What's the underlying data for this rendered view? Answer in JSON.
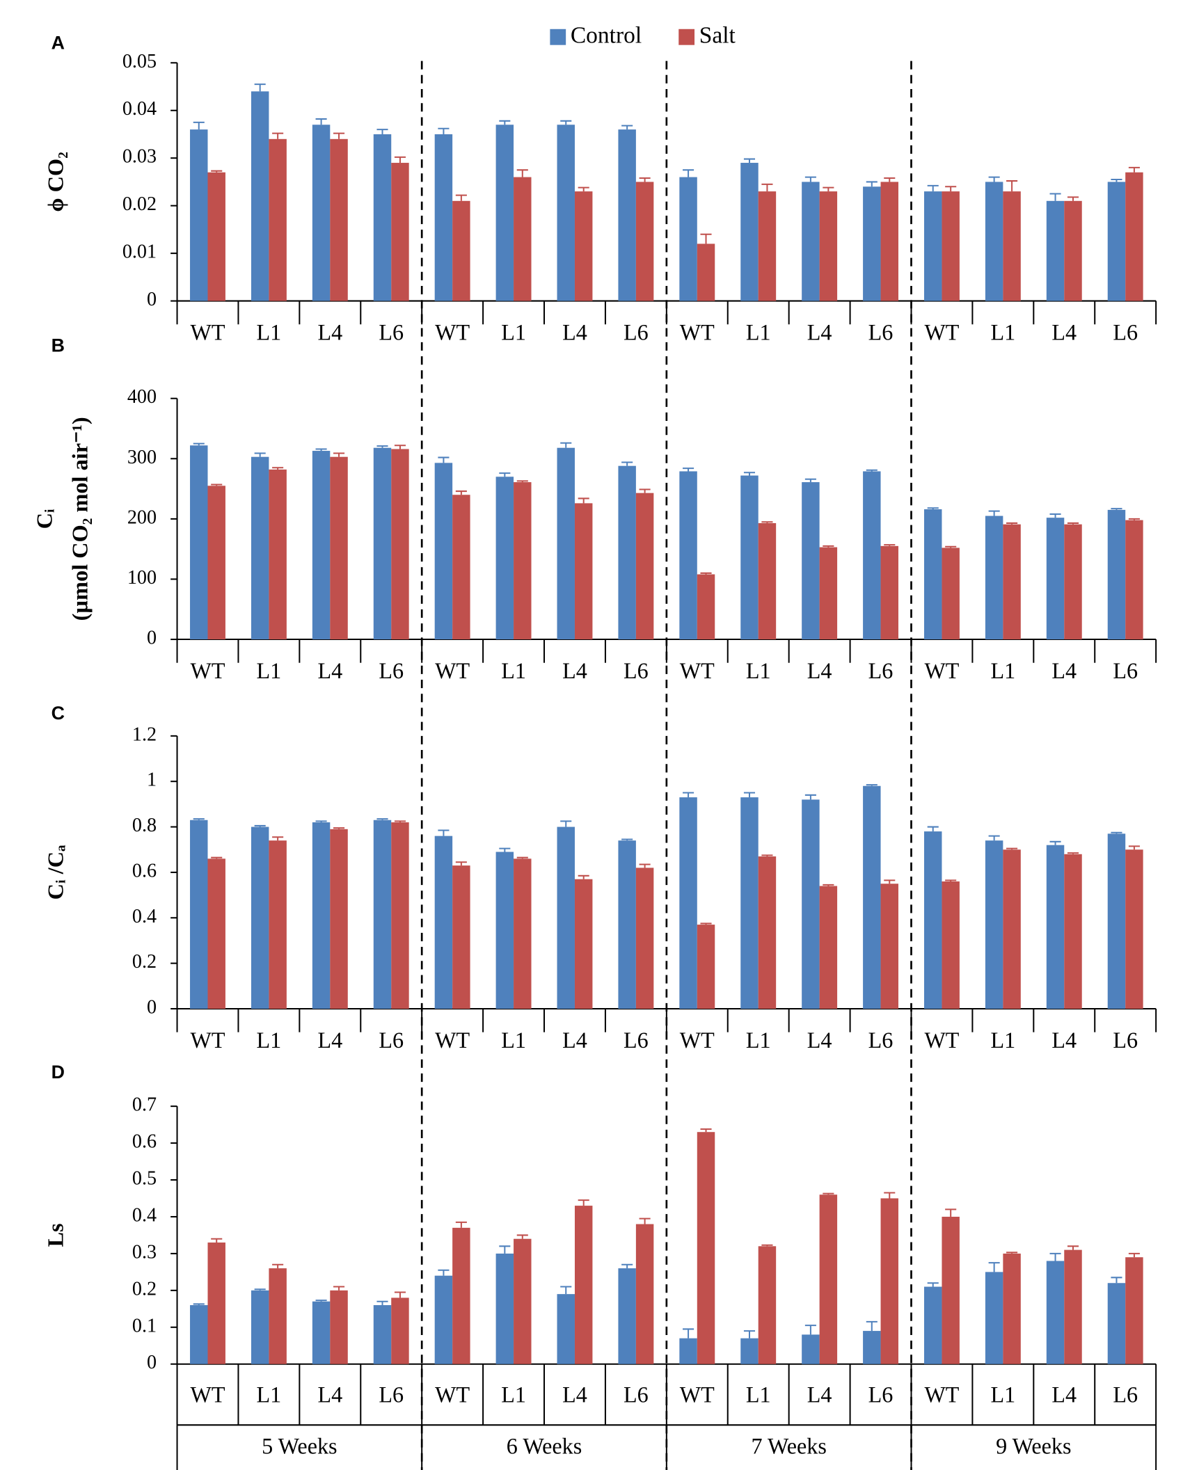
{
  "chart_data": [
    {
      "type": "bar",
      "panel": "A",
      "ylabel": [
        "ϕ CO₂"
      ],
      "categories": [
        "WT",
        "L1",
        "L4",
        "L6",
        "WT",
        "L1",
        "L4",
        "L6",
        "WT",
        "L1",
        "L4",
        "L6",
        "WT",
        "L1",
        "L4",
        "L6"
      ],
      "ylim": [
        0,
        0.05
      ],
      "yticks": [
        0,
        0.01,
        0.02,
        0.03,
        0.04,
        0.05
      ],
      "series": [
        {
          "name": "Control",
          "color": "#4f81bd",
          "values": [
            0.036,
            0.044,
            0.037,
            0.035,
            0.035,
            0.037,
            0.037,
            0.036,
            0.026,
            0.029,
            0.025,
            0.024,
            0.023,
            0.025,
            0.021,
            0.025
          ],
          "errors": [
            0.0015,
            0.0015,
            0.0012,
            0.001,
            0.0012,
            0.0008,
            0.0008,
            0.0008,
            0.0015,
            0.0008,
            0.001,
            0.001,
            0.0012,
            0.001,
            0.0015,
            0.0005
          ]
        },
        {
          "name": "Salt",
          "color": "#c0504d",
          "values": [
            0.027,
            0.034,
            0.034,
            0.029,
            0.021,
            0.026,
            0.023,
            0.025,
            0.012,
            0.023,
            0.023,
            0.025,
            0.023,
            0.023,
            0.021,
            0.027
          ],
          "errors": [
            0.0003,
            0.0012,
            0.0012,
            0.0012,
            0.0012,
            0.0015,
            0.0008,
            0.0008,
            0.002,
            0.0015,
            0.0008,
            0.0008,
            0.001,
            0.0022,
            0.0008,
            0.001
          ]
        }
      ]
    },
    {
      "type": "bar",
      "panel": "B",
      "ylabel": [
        "Cᵢ",
        "(µmol  CO₂ mol air⁻¹)"
      ],
      "categories": [
        "WT",
        "L1",
        "L4",
        "L6",
        "WT",
        "L1",
        "L4",
        "L6",
        "WT",
        "L1",
        "L4",
        "L6",
        "WT",
        "L1",
        "L4",
        "L6"
      ],
      "ylim": [
        0,
        400
      ],
      "yticks": [
        0,
        100,
        200,
        300,
        400
      ],
      "series": [
        {
          "name": "Control",
          "color": "#4f81bd",
          "values": [
            322,
            303,
            313,
            318,
            293,
            270,
            318,
            288,
            279,
            272,
            261,
            279,
            216,
            205,
            202,
            215
          ],
          "errors": [
            3,
            6,
            3,
            3,
            9,
            6,
            8,
            6,
            5,
            5,
            5,
            2,
            2,
            8,
            6,
            2
          ]
        },
        {
          "name": "Salt",
          "color": "#c0504d",
          "values": [
            255,
            282,
            303,
            316,
            240,
            261,
            226,
            243,
            108,
            193,
            153,
            155,
            152,
            191,
            191,
            198
          ],
          "errors": [
            2,
            3,
            6,
            6,
            6,
            2,
            8,
            6,
            2,
            2,
            2,
            2,
            2,
            2,
            2,
            2
          ]
        }
      ]
    },
    {
      "type": "bar",
      "panel": "C",
      "ylabel": [
        "Cᵢ /Cₐ"
      ],
      "categories": [
        "WT",
        "L1",
        "L4",
        "L6",
        "WT",
        "L1",
        "L4",
        "L6",
        "WT",
        "L1",
        "L4",
        "L6",
        "WT",
        "L1",
        "L4",
        "L6"
      ],
      "ylim": [
        0,
        1.2
      ],
      "yticks": [
        0,
        0.2,
        0.4,
        0.6,
        0.8,
        1,
        1.2
      ],
      "series": [
        {
          "name": "Control",
          "color": "#4f81bd",
          "values": [
            0.83,
            0.8,
            0.82,
            0.83,
            0.76,
            0.69,
            0.8,
            0.74,
            0.93,
            0.93,
            0.92,
            0.98,
            0.78,
            0.74,
            0.72,
            0.77
          ],
          "errors": [
            0.005,
            0.005,
            0.005,
            0.005,
            0.025,
            0.015,
            0.025,
            0.005,
            0.02,
            0.02,
            0.02,
            0.005,
            0.02,
            0.02,
            0.015,
            0.005
          ]
        },
        {
          "name": "Salt",
          "color": "#c0504d",
          "values": [
            0.66,
            0.74,
            0.79,
            0.82,
            0.63,
            0.66,
            0.57,
            0.62,
            0.37,
            0.67,
            0.54,
            0.55,
            0.56,
            0.7,
            0.68,
            0.7
          ],
          "errors": [
            0.005,
            0.015,
            0.005,
            0.005,
            0.015,
            0.005,
            0.015,
            0.015,
            0.005,
            0.005,
            0.005,
            0.015,
            0.005,
            0.005,
            0.005,
            0.015
          ]
        }
      ]
    },
    {
      "type": "bar",
      "panel": "D",
      "ylabel": [
        "Ls"
      ],
      "categories": [
        "WT",
        "L1",
        "L4",
        "L6",
        "WT",
        "L1",
        "L4",
        "L6",
        "WT",
        "L1",
        "L4",
        "L6",
        "WT",
        "L1",
        "L4",
        "L6"
      ],
      "groups": [
        "5 Weeks",
        "6 Weeks",
        "7 Weeks",
        "9 Weeks"
      ],
      "ylim": [
        0,
        0.7
      ],
      "yticks": [
        0,
        0.1,
        0.2,
        0.3,
        0.4,
        0.5,
        0.6,
        0.7
      ],
      "series": [
        {
          "name": "Control",
          "color": "#4f81bd",
          "values": [
            0.16,
            0.2,
            0.17,
            0.16,
            0.24,
            0.3,
            0.19,
            0.26,
            0.07,
            0.07,
            0.08,
            0.09,
            0.21,
            0.25,
            0.28,
            0.22
          ],
          "errors": [
            0.003,
            0.003,
            0.003,
            0.01,
            0.015,
            0.02,
            0.02,
            0.01,
            0.025,
            0.02,
            0.025,
            0.025,
            0.01,
            0.025,
            0.02,
            0.015
          ]
        },
        {
          "name": "Salt",
          "color": "#c0504d",
          "values": [
            0.33,
            0.26,
            0.2,
            0.18,
            0.37,
            0.34,
            0.43,
            0.38,
            0.63,
            0.32,
            0.46,
            0.45,
            0.4,
            0.3,
            0.31,
            0.29
          ],
          "errors": [
            0.01,
            0.01,
            0.01,
            0.015,
            0.015,
            0.01,
            0.015,
            0.015,
            0.008,
            0.003,
            0.003,
            0.015,
            0.02,
            0.003,
            0.01,
            0.01
          ]
        }
      ]
    }
  ]
}
